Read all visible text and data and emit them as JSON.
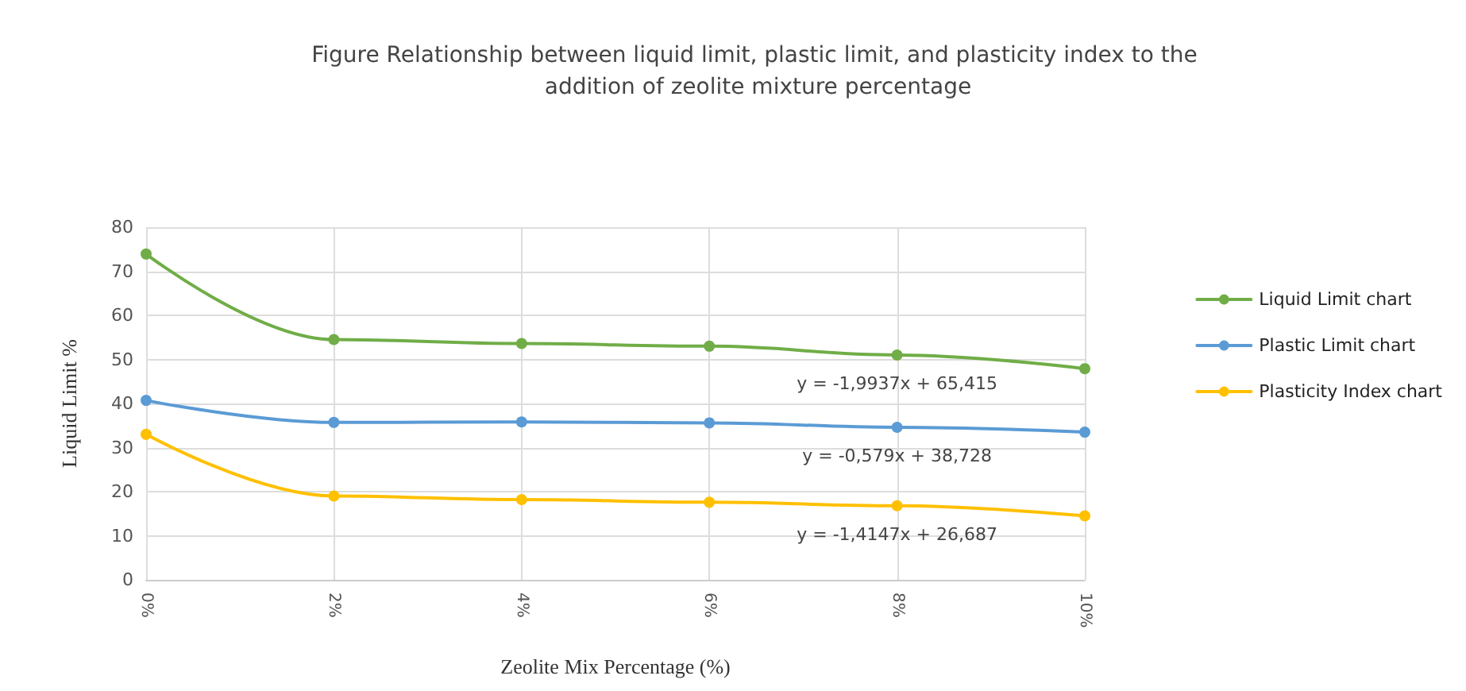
{
  "chart_data": {
    "type": "line",
    "title": "Figure Relationship between liquid limit, plastic limit, and plasticity index to the addition of zeolite mixture percentage",
    "xlabel": "Zeolite Mix Percentage (%)",
    "ylabel": "Liquid Limit %",
    "categories": [
      "0%",
      "2%",
      "4%",
      "6%",
      "8%",
      "10%"
    ],
    "series": [
      {
        "name": "Liquid Limit chart",
        "color": "#70ad47",
        "values": [
          73.9,
          54.5,
          53.6,
          53,
          51,
          47.9
        ]
      },
      {
        "name": "Plastic Limit chart",
        "color": "#5b9bd5",
        "values": [
          40.7,
          35.7,
          35.8,
          35.6,
          34.6,
          33.5
        ]
      },
      {
        "name": "Plasticity Index chart",
        "color": "#ffc000",
        "values": [
          33,
          19,
          18.2,
          17.6,
          16.8,
          14.5
        ]
      }
    ],
    "ylim": [
      0,
      80
    ],
    "yticks": [
      0,
      10,
      20,
      30,
      40,
      50,
      60,
      70,
      80
    ],
    "annotations": [
      "y = -1,9937x + 65,415",
      "y = -0,579x + 38,728",
      "y = -1,4147x + 26,687"
    ],
    "grid": true,
    "legend": "right",
    "marker": "circle",
    "line_style": "solid"
  }
}
